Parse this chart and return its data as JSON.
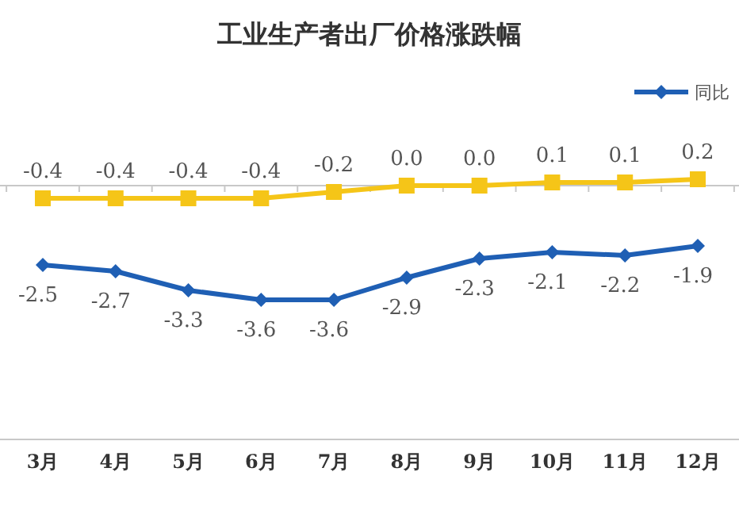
{
  "chart_data": {
    "type": "line",
    "title": "工业生产者出厂价格涨跌幅",
    "categories": [
      "3月",
      "4月",
      "5月",
      "6月",
      "7月",
      "8月",
      "9月",
      "10月",
      "11月",
      "12月"
    ],
    "series": [
      {
        "name": "同比",
        "color": "#1f5fb4",
        "marker": "diamond",
        "values": [
          -2.5,
          -2.7,
          -3.3,
          -3.6,
          -3.6,
          -2.9,
          -2.3,
          -2.1,
          -2.2,
          -1.9
        ],
        "value_labels": [
          "-2.5",
          "-2.7",
          "-3.3",
          "-3.6",
          "-3.6",
          "-2.9",
          "-2.3",
          "-2.1",
          "-2.2",
          "-1.9"
        ]
      },
      {
        "color": "#f5c518",
        "marker": "square",
        "values": [
          -0.4,
          -0.4,
          -0.4,
          -0.4,
          -0.2,
          0.0,
          0.0,
          0.1,
          0.1,
          0.2
        ],
        "value_labels": [
          "-0.4",
          "-0.4",
          "-0.4",
          "-0.4",
          "-0.2",
          "0.0",
          "0.0",
          "0.1",
          "0.1",
          "0.2"
        ]
      }
    ],
    "legend": "top right"
  }
}
